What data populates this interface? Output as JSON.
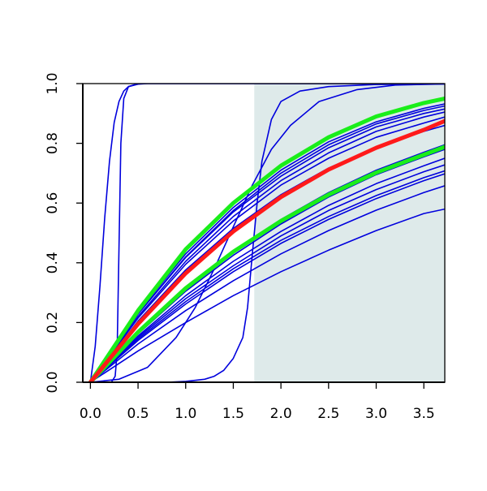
{
  "chart_data": {
    "type": "line",
    "title": "",
    "xlabel": "",
    "ylabel": "",
    "xlim": [
      -0.08,
      3.72
    ],
    "ylim": [
      0,
      1
    ],
    "x_ticks": [
      "0.0",
      "0.5",
      "1.0",
      "1.5",
      "2.0",
      "2.5",
      "3.0",
      "3.5"
    ],
    "y_ticks": [
      "0.0",
      "0.2",
      "0.4",
      "0.6",
      "0.8",
      "1.0"
    ],
    "grid": false,
    "legend": "none",
    "shaded_region": {
      "x_from": 1.72,
      "x_to": 3.72,
      "color": "#deeaea"
    },
    "colors": {
      "blue": "#0000dd",
      "red": "#ff1a1a",
      "green": "#1aee1a"
    },
    "series": [
      {
        "color": "blue",
        "width": 1.6,
        "x": [
          0,
          0.05,
          0.1,
          0.15,
          0.2,
          0.25,
          0.3,
          0.35,
          0.4,
          0.5,
          0.6,
          3.72
        ],
        "y": [
          0,
          0.12,
          0.32,
          0.55,
          0.74,
          0.87,
          0.94,
          0.975,
          0.99,
          0.998,
          1.0,
          1.0
        ]
      },
      {
        "color": "blue",
        "width": 1.6,
        "x": [
          0.22,
          0.26,
          0.28,
          0.3,
          0.32,
          0.35,
          0.4,
          0.5,
          0.7,
          3.72
        ],
        "y": [
          0,
          0.02,
          0.1,
          0.45,
          0.8,
          0.95,
          0.99,
          1.0,
          1.0,
          1.0
        ]
      },
      {
        "color": "blue",
        "width": 1.6,
        "x": [
          0,
          0.4,
          0.8,
          1.0,
          1.2,
          1.3,
          1.4,
          1.5,
          1.6,
          1.65,
          1.7,
          1.75,
          1.8,
          1.9,
          2.0,
          2.2,
          2.5,
          3.0,
          3.72
        ],
        "y": [
          0,
          0,
          0,
          0.003,
          0.01,
          0.02,
          0.04,
          0.08,
          0.15,
          0.25,
          0.43,
          0.6,
          0.74,
          0.88,
          0.94,
          0.975,
          0.99,
          0.997,
          0.999
        ]
      },
      {
        "color": "blue",
        "width": 1.6,
        "x": [
          0,
          0.3,
          0.6,
          0.9,
          1.1,
          1.3,
          1.5,
          1.7,
          1.9,
          2.1,
          2.4,
          2.8,
          3.2,
          3.72
        ],
        "y": [
          0,
          0.01,
          0.05,
          0.15,
          0.25,
          0.38,
          0.52,
          0.66,
          0.78,
          0.86,
          0.94,
          0.98,
          0.995,
          0.999
        ]
      },
      {
        "color": "blue",
        "width": 1.6,
        "x": [
          0,
          0.5,
          1.0,
          1.5,
          2.0,
          2.5,
          3.0,
          3.5,
          3.72
        ],
        "y": [
          0,
          0.205,
          0.376,
          0.515,
          0.628,
          0.717,
          0.787,
          0.84,
          0.86
        ]
      },
      {
        "color": "blue",
        "width": 1.6,
        "x": [
          0,
          0.5,
          1.0,
          1.5,
          2.0,
          2.5,
          3.0,
          3.5,
          3.72
        ],
        "y": [
          0,
          0.215,
          0.395,
          0.54,
          0.66,
          0.75,
          0.82,
          0.868,
          0.888
        ]
      },
      {
        "color": "blue",
        "width": 1.6,
        "x": [
          0,
          0.5,
          1.0,
          1.5,
          2.0,
          2.5,
          3.0,
          3.5,
          3.72
        ],
        "y": [
          0,
          0.22,
          0.405,
          0.555,
          0.675,
          0.768,
          0.84,
          0.888,
          0.905
        ]
      },
      {
        "color": "blue",
        "width": 1.6,
        "x": [
          0,
          0.5,
          1.0,
          1.5,
          2.0,
          2.5,
          3.0,
          3.5,
          3.72
        ],
        "y": [
          0,
          0.228,
          0.418,
          0.57,
          0.69,
          0.785,
          0.855,
          0.9,
          0.915
        ]
      },
      {
        "color": "blue",
        "width": 1.6,
        "x": [
          0,
          0.5,
          1.0,
          1.5,
          2.0,
          2.5,
          3.0,
          3.5,
          3.72
        ],
        "y": [
          0,
          0.23,
          0.42,
          0.575,
          0.7,
          0.795,
          0.865,
          0.91,
          0.925
        ]
      },
      {
        "color": "blue",
        "width": 1.6,
        "x": [
          0,
          0.5,
          1.0,
          1.5,
          2.0,
          2.5,
          3.0,
          3.5,
          3.72
        ],
        "y": [
          0,
          0.235,
          0.43,
          0.585,
          0.71,
          0.805,
          0.872,
          0.917,
          0.932
        ]
      },
      {
        "color": "blue",
        "width": 1.6,
        "x": [
          0,
          0.5,
          1.0,
          1.5,
          2.0,
          2.5,
          3.0,
          3.5,
          3.72
        ],
        "y": [
          0,
          0.17,
          0.318,
          0.44,
          0.545,
          0.635,
          0.71,
          0.77,
          0.795
        ]
      },
      {
        "color": "blue",
        "width": 1.6,
        "x": [
          0,
          0.5,
          1.0,
          1.5,
          2.0,
          2.5,
          3.0,
          3.5,
          3.72
        ],
        "y": [
          0,
          0.162,
          0.305,
          0.425,
          0.53,
          0.62,
          0.695,
          0.755,
          0.78
        ]
      },
      {
        "color": "blue",
        "width": 1.6,
        "x": [
          0,
          0.5,
          1.0,
          1.5,
          2.0,
          2.5,
          3.0,
          3.5,
          3.72
        ],
        "y": [
          0,
          0.155,
          0.29,
          0.405,
          0.505,
          0.592,
          0.665,
          0.725,
          0.75
        ]
      },
      {
        "color": "blue",
        "width": 1.6,
        "x": [
          0,
          0.5,
          1.0,
          1.5,
          2.0,
          2.5,
          3.0,
          3.5,
          3.72
        ],
        "y": [
          0,
          0.15,
          0.28,
          0.39,
          0.49,
          0.575,
          0.645,
          0.705,
          0.728
        ]
      },
      {
        "color": "blue",
        "width": 1.6,
        "x": [
          0,
          0.5,
          1.0,
          1.5,
          2.0,
          2.5,
          3.0,
          3.5,
          3.72
        ],
        "y": [
          0,
          0.145,
          0.27,
          0.38,
          0.475,
          0.555,
          0.625,
          0.685,
          0.708
        ]
      },
      {
        "color": "blue",
        "width": 1.6,
        "x": [
          0,
          0.5,
          1.0,
          1.5,
          2.0,
          2.5,
          3.0,
          3.5,
          3.72
        ],
        "y": [
          0,
          0.14,
          0.262,
          0.37,
          0.465,
          0.545,
          0.615,
          0.675,
          0.698
        ]
      },
      {
        "color": "blue",
        "width": 1.6,
        "x": [
          0,
          0.5,
          1.0,
          1.5,
          2.0,
          2.5,
          3.0,
          3.5,
          3.72
        ],
        "y": [
          0,
          0.128,
          0.24,
          0.34,
          0.43,
          0.508,
          0.576,
          0.635,
          0.658
        ]
      },
      {
        "color": "blue",
        "width": 1.6,
        "x": [
          0,
          0.5,
          1.0,
          1.5,
          2.0,
          2.5,
          3.0,
          3.5,
          3.72
        ],
        "y": [
          0,
          0.105,
          0.2,
          0.29,
          0.37,
          0.442,
          0.508,
          0.565,
          0.58
        ]
      },
      {
        "color": "green",
        "width": 5,
        "x": [
          0,
          0.5,
          1.0,
          1.5,
          2.0,
          2.5,
          3.0,
          3.5,
          3.72
        ],
        "y": [
          0,
          0.24,
          0.445,
          0.6,
          0.725,
          0.82,
          0.89,
          0.935,
          0.95
        ]
      },
      {
        "color": "green",
        "width": 5,
        "x": [
          0,
          0.5,
          1.0,
          1.5,
          2.0,
          2.5,
          3.0,
          3.5,
          3.72
        ],
        "y": [
          0,
          0.168,
          0.315,
          0.437,
          0.54,
          0.628,
          0.702,
          0.762,
          0.788
        ]
      },
      {
        "color": "red",
        "width": 5,
        "x": [
          0,
          0.5,
          1.0,
          1.5,
          2.0,
          2.5,
          3.0,
          3.5,
          3.72
        ],
        "y": [
          0,
          0.195,
          0.365,
          0.505,
          0.62,
          0.712,
          0.785,
          0.845,
          0.875
        ]
      }
    ]
  }
}
